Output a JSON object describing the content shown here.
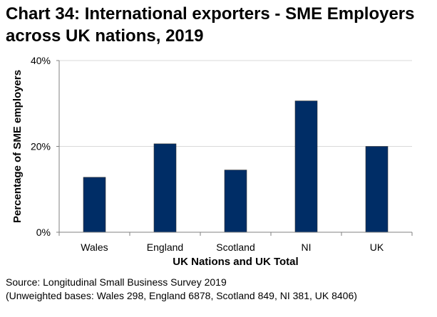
{
  "chart_data": {
    "type": "bar",
    "title": "Chart 34: International exporters - SME Employers across UK nations, 2019",
    "categories": [
      "Wales",
      "England",
      "Scotland",
      "NI",
      "UK"
    ],
    "values": [
      12.8,
      20.6,
      14.5,
      30.6,
      20.0
    ],
    "xlabel": "UK Nations and UK Total",
    "ylabel": "Percentage of SME employers",
    "ylim": [
      0,
      40
    ],
    "yticks": [
      0,
      20,
      40
    ],
    "ytick_labels": [
      "0%",
      "20%",
      "40%"
    ],
    "grid": true,
    "bar_color": "#002D66"
  },
  "footer": {
    "source": "Source: Longitudinal Small Business Survey 2019",
    "bases": "(Unweighted bases: Wales 298, England 6878, Scotland 849, NI 381, UK 8406)"
  }
}
